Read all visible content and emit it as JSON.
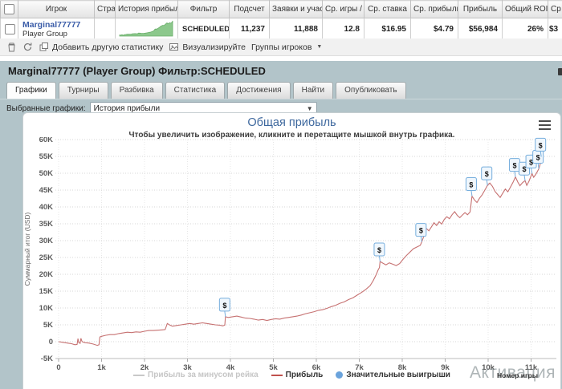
{
  "table": {
    "columns": [
      "",
      "Игрок",
      "Стра",
      "История прибыли",
      "Фильтр",
      "Подсчет",
      "Заявки и участи",
      "Ср. игры /",
      "Ср. ставка",
      "Ср. прибыль",
      "Прибыль",
      "Общий ROI",
      "Ср"
    ],
    "row": {
      "player": "Marginal77777",
      "player_sub": "Player Group",
      "country": "",
      "filter": "SCHEDULED",
      "count": "11,237",
      "entries": "11,888",
      "avg_games": "12.8",
      "avg_stake": "$16.95",
      "avg_profit": "$4.79",
      "profit": "$56,984",
      "total_roi": "26%",
      "clipped_value": "$3"
    }
  },
  "toolbar": {
    "add_stat": "Добавить другую статистику",
    "visualize": "Визуализируйте",
    "groups": "Группы игроков"
  },
  "panel": {
    "title": "Marginal77777 (Player Group) Фильтр:SCHEDULED",
    "tabs": [
      "Графики",
      "Турниры",
      "Разбивка",
      "Статистика",
      "Достижения",
      "Найти",
      "Опубликовать"
    ],
    "active_tab": "Графики",
    "selected_charts_label": "Выбранные графики:",
    "selected_chart": "История прибыли"
  },
  "watermark": "Активация",
  "chart_data": {
    "type": "line",
    "title": "Общая прибыль",
    "subtitle": "Чтобы увеличить изображение, кликните и перетащите мышкой внутрь графика.",
    "xlabel": "Номер игры",
    "ylabel": "Суммарный итог (USD)",
    "xlim": [
      0,
      11500
    ],
    "ylim": [
      -5000,
      60000
    ],
    "grid": true,
    "x_ticks": [
      {
        "label": "0",
        "value": 0
      },
      {
        "label": "1k",
        "value": 1000
      },
      {
        "label": "2k",
        "value": 2000
      },
      {
        "label": "3k",
        "value": 3000
      },
      {
        "label": "4k",
        "value": 4000
      },
      {
        "label": "5k",
        "value": 5000
      },
      {
        "label": "6k",
        "value": 6000
      },
      {
        "label": "7k",
        "value": 7000
      },
      {
        "label": "8k",
        "value": 8000
      },
      {
        "label": "9k",
        "value": 9000
      },
      {
        "label": "10k",
        "value": 10000
      },
      {
        "label": "11k",
        "value": 11000
      }
    ],
    "y_ticks": [
      {
        "label": "60K",
        "value": 60000
      },
      {
        "label": "55K",
        "value": 55000
      },
      {
        "label": "50K",
        "value": 50000
      },
      {
        "label": "45K",
        "value": 45000
      },
      {
        "label": "40K",
        "value": 40000
      },
      {
        "label": "35K",
        "value": 35000
      },
      {
        "label": "30K",
        "value": 30000
      },
      {
        "label": "25K",
        "value": 25000
      },
      {
        "label": "20K",
        "value": 20000
      },
      {
        "label": "15K",
        "value": 15000
      },
      {
        "label": "10K",
        "value": 10000
      },
      {
        "label": "5K",
        "value": 5000
      },
      {
        "label": "0",
        "value": 0
      },
      {
        "label": "-5K",
        "value": -5000
      }
    ],
    "legend": [
      {
        "label": "Прибыль за минусом рейка",
        "type": "line",
        "color": "#c8c8c8",
        "disabled": true
      },
      {
        "label": "Прибыль",
        "type": "line",
        "color": "#c0504d",
        "disabled": false
      },
      {
        "label": "Значительные выигрыши",
        "type": "marker",
        "color": "#6aa3dc",
        "disabled": false
      }
    ],
    "series": [
      {
        "name": "Прибыль",
        "color": "#c67171",
        "points": [
          [
            0,
            0
          ],
          [
            100,
            -200
          ],
          [
            200,
            -400
          ],
          [
            300,
            -600
          ],
          [
            380,
            -900
          ],
          [
            430,
            -800
          ],
          [
            450,
            900
          ],
          [
            470,
            -300
          ],
          [
            500,
            -500
          ],
          [
            520,
            1000
          ],
          [
            540,
            200
          ],
          [
            560,
            -100
          ],
          [
            620,
            -300
          ],
          [
            700,
            -400
          ],
          [
            800,
            -700
          ],
          [
            900,
            -1100
          ],
          [
            940,
            -900
          ],
          [
            960,
            1400
          ],
          [
            1000,
            1600
          ],
          [
            1100,
            1900
          ],
          [
            1200,
            2100
          ],
          [
            1300,
            2100
          ],
          [
            1400,
            2400
          ],
          [
            1500,
            2600
          ],
          [
            1600,
            2800
          ],
          [
            1700,
            2700
          ],
          [
            1800,
            2900
          ],
          [
            1900,
            2800
          ],
          [
            2000,
            3100
          ],
          [
            2100,
            3300
          ],
          [
            2200,
            3300
          ],
          [
            2300,
            3400
          ],
          [
            2400,
            3500
          ],
          [
            2480,
            3600
          ],
          [
            2530,
            5400
          ],
          [
            2580,
            5000
          ],
          [
            2650,
            4600
          ],
          [
            2750,
            4800
          ],
          [
            2850,
            5000
          ],
          [
            2950,
            5200
          ],
          [
            3050,
            5400
          ],
          [
            3150,
            5200
          ],
          [
            3250,
            5400
          ],
          [
            3350,
            5600
          ],
          [
            3450,
            5400
          ],
          [
            3550,
            5200
          ],
          [
            3650,
            5000
          ],
          [
            3750,
            4900
          ],
          [
            3820,
            4700
          ],
          [
            3870,
            4900
          ],
          [
            3885,
            7400
          ],
          [
            3950,
            7200
          ],
          [
            4050,
            7400
          ],
          [
            4150,
            7600
          ],
          [
            4250,
            7300
          ],
          [
            4350,
            7000
          ],
          [
            4450,
            6900
          ],
          [
            4550,
            6700
          ],
          [
            4650,
            6400
          ],
          [
            4750,
            6600
          ],
          [
            4850,
            6300
          ],
          [
            4950,
            6600
          ],
          [
            5050,
            6800
          ],
          [
            5150,
            6700
          ],
          [
            5250,
            7000
          ],
          [
            5350,
            7200
          ],
          [
            5450,
            7400
          ],
          [
            5550,
            7600
          ],
          [
            5650,
            7900
          ],
          [
            5750,
            8300
          ],
          [
            5850,
            8600
          ],
          [
            5950,
            8900
          ],
          [
            6050,
            9300
          ],
          [
            6150,
            9500
          ],
          [
            6250,
            9900
          ],
          [
            6350,
            10400
          ],
          [
            6450,
            10800
          ],
          [
            6550,
            11400
          ],
          [
            6650,
            11800
          ],
          [
            6750,
            12500
          ],
          [
            6850,
            13000
          ],
          [
            6950,
            13800
          ],
          [
            7050,
            14600
          ],
          [
            7150,
            15500
          ],
          [
            7250,
            16600
          ],
          [
            7320,
            18000
          ],
          [
            7390,
            19800
          ],
          [
            7440,
            21300
          ],
          [
            7470,
            22000
          ],
          [
            7485,
            23800
          ],
          [
            7550,
            23300
          ],
          [
            7620,
            22800
          ],
          [
            7700,
            23400
          ],
          [
            7780,
            23000
          ],
          [
            7860,
            22600
          ],
          [
            7940,
            23200
          ],
          [
            8020,
            24500
          ],
          [
            8100,
            25600
          ],
          [
            8180,
            26600
          ],
          [
            8260,
            27600
          ],
          [
            8340,
            28100
          ],
          [
            8420,
            28600
          ],
          [
            8455,
            29600
          ],
          [
            8510,
            31600
          ],
          [
            8560,
            33600
          ],
          [
            8620,
            32900
          ],
          [
            8680,
            34100
          ],
          [
            8740,
            35300
          ],
          [
            8800,
            34500
          ],
          [
            8860,
            35600
          ],
          [
            8920,
            34900
          ],
          [
            8980,
            36300
          ],
          [
            9040,
            37100
          ],
          [
            9100,
            36500
          ],
          [
            9160,
            37700
          ],
          [
            9220,
            38600
          ],
          [
            9280,
            37500
          ],
          [
            9340,
            36800
          ],
          [
            9400,
            37600
          ],
          [
            9460,
            38300
          ],
          [
            9520,
            37700
          ],
          [
            9580,
            38500
          ],
          [
            9625,
            43200
          ],
          [
            9680,
            42100
          ],
          [
            9740,
            41300
          ],
          [
            9800,
            42600
          ],
          [
            9860,
            43600
          ],
          [
            9920,
            44900
          ],
          [
            9985,
            46400
          ],
          [
            10040,
            47100
          ],
          [
            10100,
            46100
          ],
          [
            10160,
            44600
          ],
          [
            10220,
            43700
          ],
          [
            10280,
            42800
          ],
          [
            10340,
            44100
          ],
          [
            10400,
            45300
          ],
          [
            10460,
            44500
          ],
          [
            10520,
            45900
          ],
          [
            10580,
            47300
          ],
          [
            10635,
            48900
          ],
          [
            10690,
            47400
          ],
          [
            10740,
            46300
          ],
          [
            10800,
            47200
          ],
          [
            10860,
            47800
          ],
          [
            10900,
            46400
          ],
          [
            10950,
            47600
          ],
          [
            11020,
            49900
          ],
          [
            11060,
            48800
          ],
          [
            11110,
            49700
          ],
          [
            11180,
            51300
          ],
          [
            11210,
            52600
          ],
          [
            11237,
            54900
          ]
        ]
      }
    ],
    "markers": {
      "name": "Значительные выигрыши",
      "symbol": "$",
      "box_fill": "#f0f7fd",
      "box_stroke": "#76aedd",
      "points": [
        [
          3885,
          7400
        ],
        [
          7485,
          23800
        ],
        [
          8455,
          29600
        ],
        [
          9625,
          43200
        ],
        [
          9985,
          46400
        ],
        [
          10635,
          48900
        ],
        [
          10860,
          47800
        ],
        [
          11020,
          49900
        ],
        [
          11180,
          51300
        ],
        [
          11237,
          54900
        ]
      ]
    }
  }
}
